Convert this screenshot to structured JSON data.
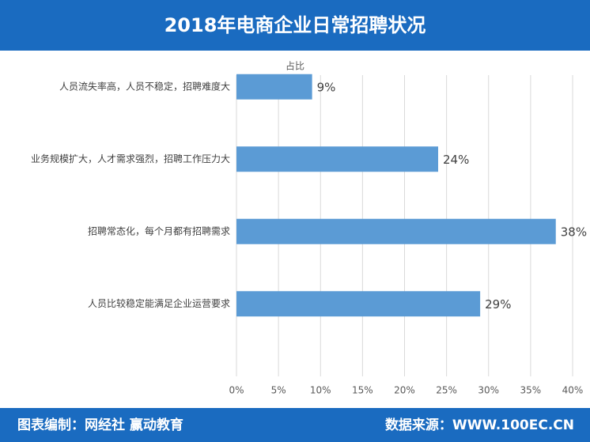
{
  "chart_data": {
    "type": "bar",
    "orientation": "horizontal",
    "title": "2018年电商企业日常招聘状况",
    "subtitle": "占比",
    "categories": [
      "人员流失率高，人员不稳定，招聘难度大",
      "业务规模扩大，人才需求强烈，招聘工作压力大",
      "招聘常态化，每个月都有招聘需求",
      "人员比较稳定能满足企业运营要求"
    ],
    "values": [
      9,
      24,
      38,
      29
    ],
    "value_labels": [
      "9%",
      "24%",
      "38%",
      "29%"
    ],
    "color": "#5b9bd5",
    "xlim": [
      0,
      40
    ],
    "xticks": [
      {
        "value": 0,
        "label": "0%"
      },
      {
        "value": 5,
        "label": "5%"
      },
      {
        "value": 10,
        "label": "10%"
      },
      {
        "value": 15,
        "label": "15%"
      },
      {
        "value": 20,
        "label": "20%"
      },
      {
        "value": 25,
        "label": "25%"
      },
      {
        "value": 30,
        "label": "30%"
      },
      {
        "value": 35,
        "label": "35%"
      },
      {
        "value": 40,
        "label": "40%"
      }
    ],
    "grid": true
  },
  "footer": {
    "credit": "图表编制：网经社 赢动教育",
    "source": "数据来源：WWW.100EC.CN"
  }
}
